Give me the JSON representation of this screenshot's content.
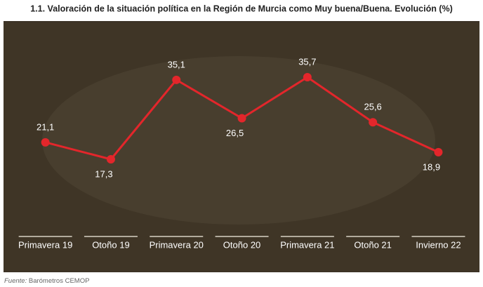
{
  "chart_data": {
    "type": "line",
    "title": "1.1. Valoración de la situación política en la Región de Murcia como Muy buena/Buena. Evolución (%)",
    "categories": [
      "Primavera 19",
      "Otoño 19",
      "Primavera 20",
      "Otoño 20",
      "Primavera 21",
      "Otoño 21",
      "Invierno 22"
    ],
    "values": [
      21.1,
      17.3,
      35.1,
      26.5,
      35.7,
      25.6,
      18.9
    ],
    "value_labels": [
      "21,1",
      "17,3",
      "35,1",
      "26,5",
      "35,7",
      "25,6",
      "18,9"
    ],
    "color": "#e3262b",
    "source_label": "Fuente:",
    "source": "Barómetros CEMOP"
  }
}
